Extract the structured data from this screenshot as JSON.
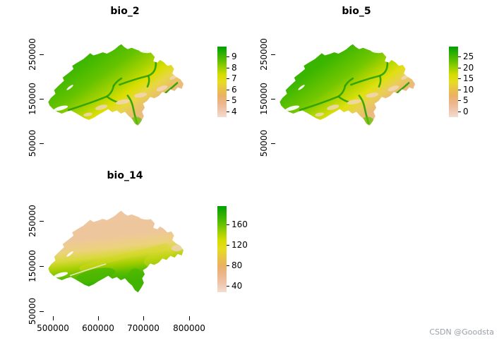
{
  "figure": {
    "layout": "2x2 grid of Switzerland raster maps, bottom-right cell empty",
    "background": "#ffffff"
  },
  "watermark": "CSDN @Goodsta",
  "palette": {
    "legend_stops": [
      "#00a000",
      "#2eb000",
      "#5fc000",
      "#9cd000",
      "#d6dc00",
      "#e6dc20",
      "#e8c443",
      "#eab066",
      "#edb68c",
      "#f0c6ac",
      "#f3dcd0"
    ],
    "axis_color": "#000000",
    "watermark_color": "#9aa0a6"
  },
  "chart_data": [
    {
      "type": "heatmap",
      "title": "bio_2",
      "region": "Switzerland bioclim raster",
      "x_range": [
        480000,
        840000
      ],
      "y_range": [
        40000,
        320000
      ],
      "x_ticks": [],
      "y_ticks": [
        250000,
        150000,
        50000
      ],
      "legend": {
        "position": "right",
        "orientation": "vertical",
        "ticks": [
          9,
          8,
          7,
          6,
          5,
          4
        ]
      },
      "color_mapping": "high values green, low values pale pink (terrain palette)",
      "map_gradient": {
        "stops": [
          {
            "pos": 0,
            "color": "#2fb100"
          },
          {
            "pos": 26,
            "color": "#3db700"
          },
          {
            "pos": 42,
            "color": "#66c300"
          },
          {
            "pos": 54,
            "color": "#a4d200"
          },
          {
            "pos": 63,
            "color": "#dade00"
          },
          {
            "pos": 70,
            "color": "#e7d843"
          },
          {
            "pos": 78,
            "color": "#e9c06c"
          },
          {
            "pos": 87,
            "color": "#ecb88e"
          },
          {
            "pos": 100,
            "color": "#f0ccb4"
          }
        ]
      },
      "overlay_colors": {
        "valley": "#2aa000",
        "peak": "#f3d6c0",
        "south_green": "#5fc200"
      }
    },
    {
      "type": "heatmap",
      "title": "bio_5",
      "region": "Switzerland bioclim raster",
      "x_range": [
        480000,
        840000
      ],
      "y_range": [
        40000,
        320000
      ],
      "x_ticks": [],
      "y_ticks": [
        250000,
        150000,
        50000
      ],
      "legend": {
        "position": "right",
        "orientation": "vertical",
        "ticks": [
          25,
          20,
          15,
          10,
          5,
          0
        ]
      },
      "color_mapping": "high values green, low values pale pink (terrain palette)",
      "map_gradient": {
        "stops": [
          {
            "pos": 0,
            "color": "#28ae00"
          },
          {
            "pos": 30,
            "color": "#3bb600"
          },
          {
            "pos": 48,
            "color": "#74c700"
          },
          {
            "pos": 58,
            "color": "#b4d600"
          },
          {
            "pos": 66,
            "color": "#e0e010"
          },
          {
            "pos": 73,
            "color": "#e8cf55"
          },
          {
            "pos": 80,
            "color": "#eabb78"
          },
          {
            "pos": 90,
            "color": "#edc096"
          },
          {
            "pos": 100,
            "color": "#f1d2ae"
          }
        ]
      },
      "overlay_colors": {
        "valley": "#2aa000",
        "peak": "#f3d6c0",
        "south_green": "#5fc200"
      }
    },
    {
      "type": "heatmap",
      "title": "bio_14",
      "region": "Switzerland bioclim raster",
      "x_range": [
        480000,
        840000
      ],
      "y_range": [
        40000,
        320000
      ],
      "x_ticks": [
        500000,
        600000,
        700000,
        800000
      ],
      "y_ticks": [
        250000,
        150000,
        50000
      ],
      "legend": {
        "position": "right",
        "orientation": "vertical",
        "ticks": [
          160,
          120,
          80,
          40
        ]
      },
      "color_mapping": "high values green (south), low values salmon pink (north)",
      "map_gradient": {
        "stops": [
          {
            "pos": 0,
            "color": "#efc6a2"
          },
          {
            "pos": 38,
            "color": "#eec69c"
          },
          {
            "pos": 52,
            "color": "#ecd27c"
          },
          {
            "pos": 62,
            "color": "#d8d93a"
          },
          {
            "pos": 72,
            "color": "#a6cf00"
          },
          {
            "pos": 82,
            "color": "#5fbe00"
          },
          {
            "pos": 92,
            "color": "#38b200"
          },
          {
            "pos": 100,
            "color": "#2fae00"
          }
        ]
      },
      "overlay_colors": {
        "green_low": "#48b700",
        "pale": "#f5e7d4",
        "yellow_band": "#d4da24",
        "pale_peak": "#f0d2ba"
      }
    }
  ]
}
